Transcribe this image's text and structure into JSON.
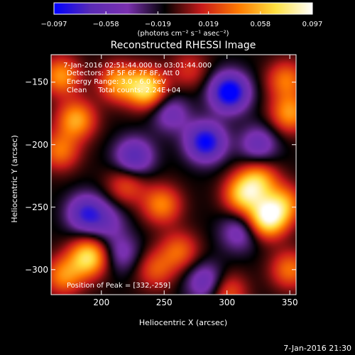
{
  "chart_data": {
    "type": "heatmap",
    "title": "Reconstructed RHESSI Image",
    "xlabel": "Heliocentric X (arcsec)",
    "ylabel": "Heliocentric Y (arcsec)",
    "xlim": [
      160,
      355
    ],
    "ylim": [
      -320,
      -128
    ],
    "x_ticks": [
      200,
      250,
      300,
      350
    ],
    "x_tick_labels": [
      "200",
      "250",
      "300",
      "350"
    ],
    "y_ticks": [
      -150,
      -200,
      -250,
      -300
    ],
    "y_tick_labels": [
      "−150",
      "−200",
      "−250",
      "−300"
    ],
    "colorbar": {
      "min": -0.097,
      "max": 0.097,
      "ticks": [
        -0.097,
        -0.058,
        -0.019,
        0.019,
        0.058,
        0.097
      ],
      "tick_labels": [
        "−0.097",
        "−0.058",
        "−0.019",
        "0.019",
        "0.058",
        "0.097"
      ],
      "unit_label": "(photons cm⁻² s⁻¹ asec⁻²)",
      "colors": [
        "#0000ff",
        "#5a2bb4",
        "#7a30b0",
        "#000000",
        "#c81a1a",
        "#ff7a00",
        "#ffe040",
        "#ffffff"
      ]
    },
    "sources": [
      {
        "x": 332,
        "y": -259,
        "value": 0.097
      },
      {
        "x": 313,
        "y": -240,
        "value": 0.072
      },
      {
        "x": 325,
        "y": -228,
        "value": 0.06
      },
      {
        "x": 345,
        "y": -247,
        "value": 0.055
      },
      {
        "x": 236,
        "y": -155,
        "value": 0.088
      },
      {
        "x": 213,
        "y": -150,
        "value": 0.06
      },
      {
        "x": 180,
        "y": -180,
        "value": 0.065
      },
      {
        "x": 168,
        "y": -145,
        "value": 0.06
      },
      {
        "x": 167,
        "y": -205,
        "value": 0.05
      },
      {
        "x": 190,
        "y": -290,
        "value": 0.085
      },
      {
        "x": 170,
        "y": -305,
        "value": 0.055
      },
      {
        "x": 248,
        "y": -248,
        "value": 0.055
      },
      {
        "x": 220,
        "y": -232,
        "value": 0.04
      },
      {
        "x": 262,
        "y": -285,
        "value": 0.045
      },
      {
        "x": 243,
        "y": -300,
        "value": 0.04
      },
      {
        "x": 350,
        "y": -175,
        "value": 0.06
      },
      {
        "x": 347,
        "y": -148,
        "value": 0.05
      },
      {
        "x": 350,
        "y": -300,
        "value": 0.05
      },
      {
        "x": 300,
        "y": -318,
        "value": 0.045
      },
      {
        "x": 270,
        "y": -140,
        "value": 0.03
      },
      {
        "x": 302,
        "y": -158,
        "value": -0.095
      },
      {
        "x": 283,
        "y": -198,
        "value": -0.085
      },
      {
        "x": 226,
        "y": -210,
        "value": -0.06
      },
      {
        "x": 188,
        "y": -255,
        "value": -0.065
      },
      {
        "x": 255,
        "y": -175,
        "value": -0.04
      },
      {
        "x": 310,
        "y": -270,
        "value": -0.04
      },
      {
        "x": 283,
        "y": -310,
        "value": -0.05
      },
      {
        "x": 216,
        "y": -287,
        "value": -0.035
      },
      {
        "x": 325,
        "y": -200,
        "value": -0.045
      },
      {
        "x": 205,
        "y": -262,
        "value": -0.03
      }
    ],
    "peak_position": [
      332,
      -259
    ]
  },
  "overlay": {
    "line1": " 7-Jan-2016 02:51:44.000 to 03:01:44.000",
    "line2": "Detectors: 3F 5F 6F 7F 8F, Att 0",
    "line3": "Energy Range: 3.0 - 6.0 keV",
    "line4": "Clean     Total counts: 2.24E+04",
    "peak_text": "Position of Peak = [332,-259]"
  },
  "footer_timestamp": "7-Jan-2016 21:30"
}
